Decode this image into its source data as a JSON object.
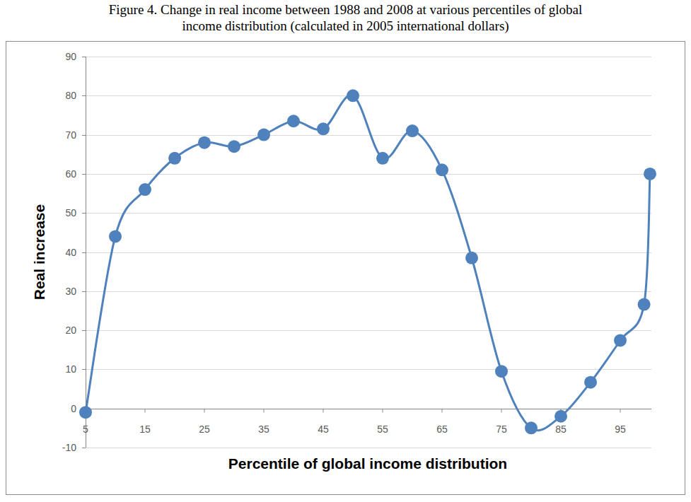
{
  "chart_data": {
    "type": "line",
    "title": "Figure 4. Change in real income between 1988 and 2008 at various percentiles of global\nincome distribution (calculated in 2005 international dollars)",
    "x_label": "Percentile of global income distribution",
    "y_label": "Real increase",
    "x": [
      5,
      10,
      15,
      20,
      25,
      30,
      35,
      40,
      45,
      50,
      55,
      60,
      65,
      70,
      75,
      80,
      85,
      90,
      95,
      99,
      100
    ],
    "values": [
      -1,
      44,
      56,
      64,
      68,
      67,
      70,
      73.5,
      71.5,
      80,
      64,
      71,
      61,
      38.5,
      9.5,
      -5,
      -2,
      6.7,
      17.4,
      26.6,
      60
    ],
    "color": "#4f81bd",
    "marker": "circle",
    "line_style": "smooth",
    "xlim": [
      5,
      100
    ],
    "xticks": [
      5,
      15,
      25,
      35,
      45,
      55,
      65,
      75,
      85,
      95
    ],
    "ylim": [
      -10,
      90
    ],
    "yticks": [
      -10,
      0,
      10,
      20,
      30,
      40,
      50,
      60,
      70,
      80,
      90
    ],
    "grid": true
  }
}
